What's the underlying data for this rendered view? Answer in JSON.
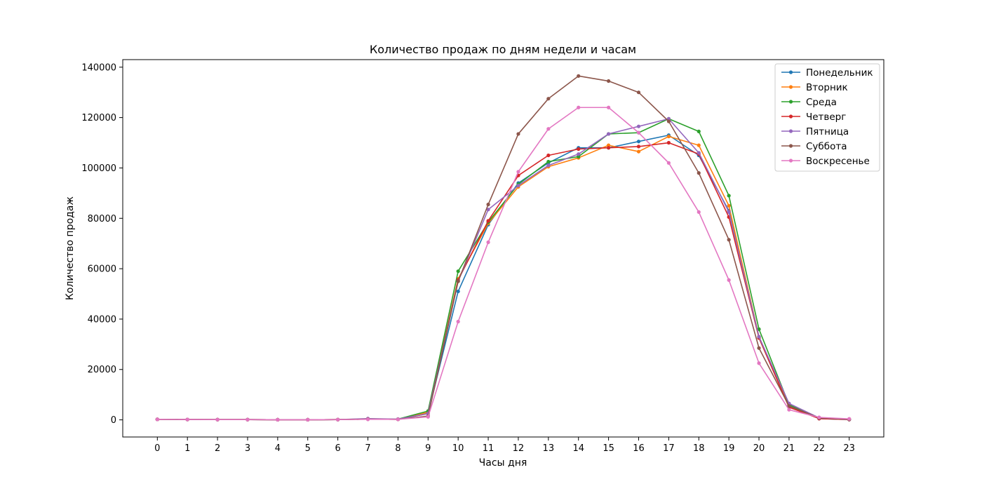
{
  "chart_data": {
    "type": "line",
    "title": "Количество продаж по дням недели и часам",
    "xlabel": "Часы дня",
    "ylabel": "Количество продаж",
    "x": [
      0,
      1,
      2,
      3,
      4,
      5,
      6,
      7,
      8,
      9,
      10,
      11,
      12,
      13,
      14,
      15,
      16,
      17,
      18,
      19,
      20,
      21,
      22,
      23
    ],
    "xlim": [
      -1.15,
      24.15
    ],
    "ylim": [
      -6800,
      143000
    ],
    "yticks": [
      0,
      20000,
      40000,
      60000,
      80000,
      100000,
      120000,
      140000
    ],
    "grid": false,
    "legend_position": "top-right",
    "series": [
      {
        "name": "Понедельник",
        "color": "#1f77b4",
        "values": [
          200,
          150,
          100,
          100,
          50,
          50,
          100,
          300,
          200,
          2500,
          51000,
          77500,
          94000,
          102000,
          108000,
          108000,
          110500,
          113000,
          105000,
          83000,
          33000,
          5500,
          500,
          100
        ]
      },
      {
        "name": "Вторник",
        "color": "#ff7f0e",
        "values": [
          200,
          150,
          100,
          100,
          50,
          50,
          100,
          300,
          200,
          3000,
          56000,
          78000,
          92500,
          100500,
          104000,
          109000,
          106500,
          112500,
          109000,
          85000,
          33000,
          5500,
          800,
          300
        ]
      },
      {
        "name": "Среда",
        "color": "#2ca02c",
        "values": [
          200,
          150,
          100,
          100,
          50,
          50,
          100,
          400,
          300,
          3500,
          59000,
          78500,
          93500,
          102500,
          104500,
          113500,
          114000,
          119500,
          114500,
          89000,
          36000,
          6000,
          800,
          300
        ]
      },
      {
        "name": "Четверг",
        "color": "#d62728",
        "values": [
          200,
          150,
          100,
          100,
          50,
          50,
          100,
          300,
          200,
          2500,
          55500,
          79000,
          97000,
          105000,
          107500,
          108000,
          108500,
          110000,
          105500,
          80500,
          32500,
          5000,
          500,
          100
        ]
      },
      {
        "name": "Пятница",
        "color": "#9467bd",
        "values": [
          200,
          150,
          100,
          100,
          50,
          50,
          100,
          500,
          300,
          2500,
          55000,
          83500,
          93000,
          101000,
          105500,
          113500,
          116500,
          119500,
          106000,
          82500,
          33000,
          6500,
          800,
          200
        ]
      },
      {
        "name": "Суббота",
        "color": "#8c564b",
        "values": [
          200,
          150,
          100,
          100,
          50,
          50,
          100,
          300,
          200,
          1500,
          55000,
          85500,
          113500,
          127500,
          136500,
          134500,
          130000,
          118500,
          98000,
          71500,
          28500,
          5500,
          800,
          200
        ]
      },
      {
        "name": "Воскресенье",
        "color": "#e377c2",
        "values": [
          200,
          150,
          100,
          100,
          50,
          50,
          100,
          200,
          200,
          1200,
          39000,
          70500,
          98500,
          115500,
          124000,
          124000,
          114000,
          102000,
          82500,
          55500,
          22500,
          4000,
          1000,
          400
        ]
      }
    ]
  }
}
